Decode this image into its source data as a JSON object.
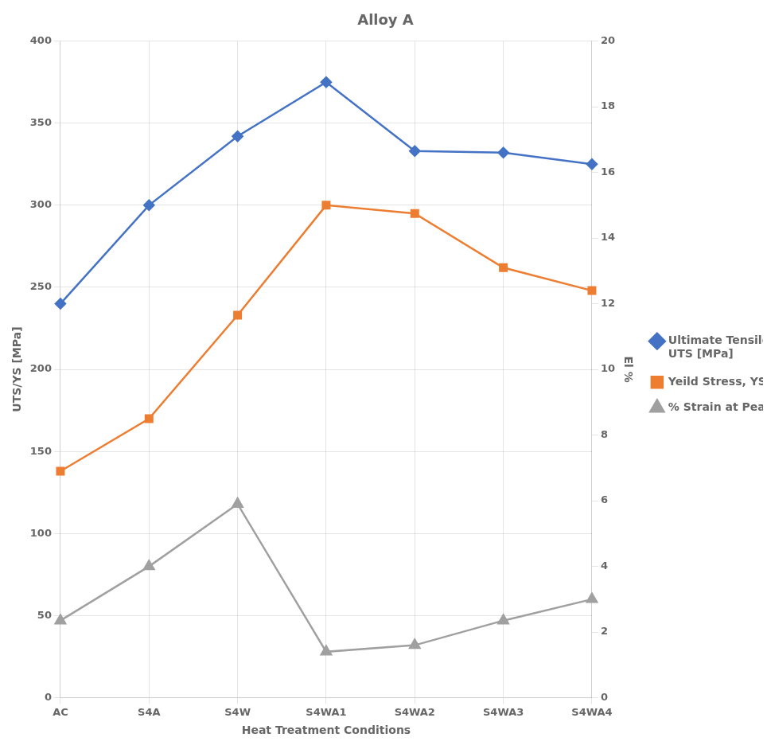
{
  "chart_data": {
    "type": "line",
    "title": "Alloy A",
    "xlabel": "Heat Treatment Conditions",
    "ylabel": "UTS/YS [MPa]",
    "y2label": "El %",
    "categories": [
      "AC",
      "S4A",
      "S4W",
      "S4WA1",
      "S4WA2",
      "S4WA3",
      "S4WA4"
    ],
    "series": [
      {
        "name": "Ultimate Tensile Stress,\nUTS [MPa]",
        "color": "#4472C4",
        "marker": "diamond",
        "axis": "y",
        "values": [
          240,
          300,
          342,
          375,
          333,
          332,
          325
        ]
      },
      {
        "name": "Yeild Stress, YS [MPa]",
        "color": "#ED7D31",
        "marker": "square",
        "axis": "y",
        "values": [
          138,
          170,
          233,
          300,
          295,
          262,
          248
        ]
      },
      {
        "name": "% Strain at Peak",
        "color": "#A0A0A0",
        "marker": "triangle",
        "axis": "y2",
        "values": [
          2.35,
          4.0,
          5.9,
          1.4,
          1.6,
          2.35,
          3.0
        ]
      }
    ],
    "ylim": [
      0,
      400
    ],
    "yticks": [
      0,
      50,
      100,
      150,
      200,
      250,
      300,
      350,
      400
    ],
    "y2lim": [
      0,
      20
    ],
    "y2ticks": [
      0,
      2,
      4,
      6,
      8,
      10,
      12,
      14,
      16,
      18,
      20
    ],
    "grid": true,
    "legend": "right"
  }
}
